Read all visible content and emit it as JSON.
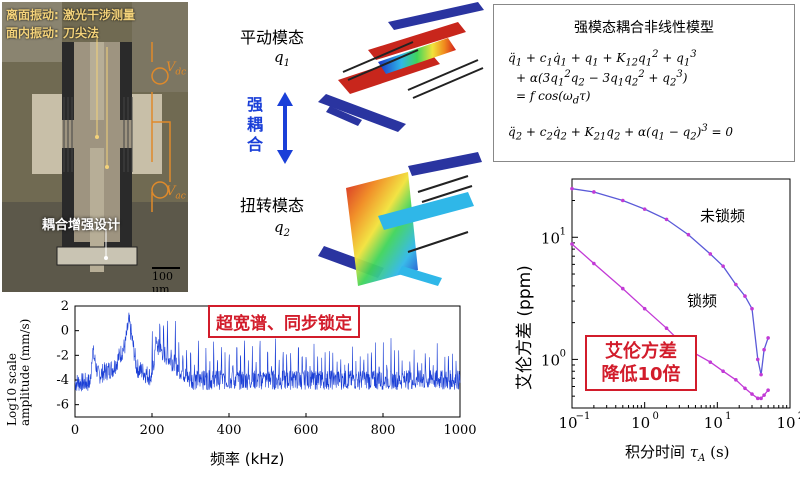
{
  "micrograph": {
    "label_out_of_plane": "离面振动: 激光干涉测量",
    "label_in_plane": "面内振动: 刀尖法",
    "caption": "耦合增强设计",
    "scale_bar": "100 um",
    "v_dc": "V",
    "v_dc_sub": "dc",
    "v_ac": "V",
    "v_ac_sub": "ac"
  },
  "modes": {
    "translation_name": "平动模态",
    "translation_var": "q",
    "translation_sub": "1",
    "strong_coupling": [
      "强",
      "耦",
      "合"
    ],
    "torsion_name": "扭转模态",
    "torsion_var": "q",
    "torsion_sub": "2"
  },
  "model": {
    "title": "强模态耦合非线性模型"
  },
  "spectrum": {
    "callout": "超宽谱、同步锁定",
    "ylabel_line1": "Log10 scale",
    "ylabel_line2": "amplitude (mm/s)",
    "xlabel": "频率 (kHz)",
    "xticks": [
      "0",
      "200",
      "400",
      "600",
      "800",
      "1000"
    ],
    "yticks": [
      "2",
      "0",
      "-2",
      "-4",
      "-6"
    ]
  },
  "allan": {
    "ylabel": "艾伦方差 (ppm)",
    "xlabel": "积分时间",
    "xlabel_sym": "τ",
    "xlabel_sub": "A",
    "xlabel_unit": "(s)",
    "unlocked_label": "未锁频",
    "locked_label": "锁频",
    "callout_line1": "艾伦方差",
    "callout_line2": "降低10倍",
    "xticks": [
      "10",
      "10",
      "10",
      "10"
    ],
    "xtick_exps": [
      "−1",
      "0",
      "1",
      "2"
    ],
    "yticks": [
      "10",
      "10"
    ],
    "ytick_exps": [
      "1",
      "0"
    ]
  },
  "chart_data": [
    {
      "type": "line",
      "xlabel": "频率 (kHz)",
      "ylabel": "Log10 scale amplitude (mm/s)",
      "xlim": [
        0,
        1000
      ],
      "ylim": [
        -7,
        2
      ],
      "x_ticks": [
        0,
        200,
        400,
        600,
        800,
        1000
      ],
      "y_ticks": [
        2,
        0,
        -2,
        -4,
        -6
      ],
      "series": [
        {
          "x": [
            0,
            40,
            45,
            60,
            100,
            130,
            140,
            150,
            160,
            200,
            210,
            300,
            400,
            500,
            600,
            700,
            800,
            900,
            1000
          ],
          "y": [
            -4.2,
            -4.2,
            -1.5,
            -3.6,
            -3.0,
            -1.2,
            0.8,
            -1.0,
            -3.0,
            -3.8,
            -1.2,
            -4.0,
            -4.0,
            -4.0,
            -4.0,
            -4.0,
            -4.0,
            -4.0,
            -4.0
          ]
        }
      ]
    },
    {
      "type": "line",
      "xlabel": "积分时间 τA (s)",
      "ylabel": "艾伦方差 (ppm)",
      "x_scale": "log",
      "y_scale": "log",
      "xlim": [
        0.1,
        100
      ],
      "ylim": [
        0.4,
        30
      ],
      "series": [
        {
          "name": "未锁频",
          "x": [
            0.1,
            0.2,
            0.5,
            1,
            2,
            4,
            8,
            12,
            18,
            24,
            30,
            36,
            40,
            44,
            50
          ],
          "y": [
            25,
            23.5,
            20,
            17,
            14,
            10.5,
            7.3,
            5.8,
            4.1,
            3.3,
            2.6,
            1.0,
            0.75,
            1.2,
            1.5
          ]
        },
        {
          "name": "锁频",
          "x": [
            0.1,
            0.2,
            0.5,
            1,
            2,
            4,
            8,
            12,
            18,
            24,
            30,
            36,
            40,
            44,
            50
          ],
          "y": [
            8.8,
            6.1,
            3.8,
            2.6,
            1.8,
            1.2,
            0.95,
            0.8,
            0.68,
            0.58,
            0.52,
            0.48,
            0.48,
            0.51,
            0.56
          ]
        }
      ]
    }
  ]
}
